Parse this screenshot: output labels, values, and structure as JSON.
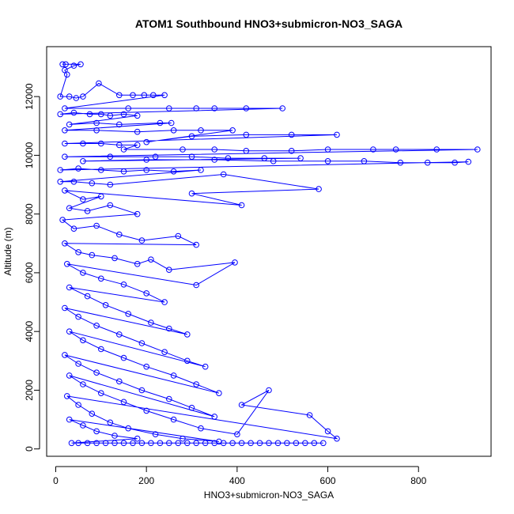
{
  "chart_data": {
    "type": "line",
    "title": "ATOM1 Southbound HNO3+submicron-NO3_SAGA",
    "xlabel": "HNO3+submicron-NO3_SAGA",
    "ylabel": "Altitude (m)",
    "xlim": [
      -20,
      960
    ],
    "ylim": [
      -250,
      13700
    ],
    "x_ticks": [
      0,
      200,
      400,
      600,
      800
    ],
    "y_ticks": [
      0,
      2000,
      4000,
      6000,
      8000,
      10000,
      12000
    ],
    "grid": false,
    "legend": "none",
    "series_color": "#0000ff",
    "marker": "open-circle",
    "series": [
      {
        "name": "",
        "points": [
          [
            15,
            13100
          ],
          [
            22,
            13100
          ],
          [
            55,
            13100
          ],
          [
            40,
            13050
          ],
          [
            20,
            12900
          ],
          [
            25,
            12750
          ],
          [
            10,
            12000
          ],
          [
            30,
            12000
          ],
          [
            45,
            11950
          ],
          [
            60,
            12000
          ],
          [
            95,
            12450
          ],
          [
            140,
            12050
          ],
          [
            170,
            12050
          ],
          [
            195,
            12050
          ],
          [
            215,
            12050
          ],
          [
            240,
            12050
          ],
          [
            20,
            11600
          ],
          [
            160,
            11600
          ],
          [
            250,
            11600
          ],
          [
            310,
            11600
          ],
          [
            350,
            11600
          ],
          [
            420,
            11600
          ],
          [
            500,
            11600
          ],
          [
            10,
            11400
          ],
          [
            40,
            11450
          ],
          [
            75,
            11400
          ],
          [
            100,
            11400
          ],
          [
            120,
            11350
          ],
          [
            150,
            11400
          ],
          [
            180,
            11350
          ],
          [
            30,
            11050
          ],
          [
            90,
            11100
          ],
          [
            140,
            11050
          ],
          [
            230,
            11100
          ],
          [
            255,
            11100
          ],
          [
            20,
            10850
          ],
          [
            90,
            10850
          ],
          [
            180,
            10800
          ],
          [
            260,
            10850
          ],
          [
            320,
            10850
          ],
          [
            390,
            10850
          ],
          [
            200,
            10450
          ],
          [
            300,
            10650
          ],
          [
            420,
            10700
          ],
          [
            520,
            10700
          ],
          [
            620,
            10700
          ],
          [
            20,
            10400
          ],
          [
            60,
            10400
          ],
          [
            100,
            10400
          ],
          [
            140,
            10350
          ],
          [
            180,
            10350
          ],
          [
            150,
            10200
          ],
          [
            280,
            10200
          ],
          [
            350,
            10200
          ],
          [
            420,
            10150
          ],
          [
            520,
            10150
          ],
          [
            600,
            10200
          ],
          [
            700,
            10200
          ],
          [
            750,
            10200
          ],
          [
            840,
            10200
          ],
          [
            930,
            10200
          ],
          [
            20,
            9950
          ],
          [
            120,
            9950
          ],
          [
            220,
            9950
          ],
          [
            300,
            9950
          ],
          [
            380,
            9900
          ],
          [
            460,
            9900
          ],
          [
            540,
            9900
          ],
          [
            60,
            9800
          ],
          [
            200,
            9850
          ],
          [
            350,
            9850
          ],
          [
            480,
            9800
          ],
          [
            600,
            9800
          ],
          [
            680,
            9800
          ],
          [
            760,
            9750
          ],
          [
            820,
            9750
          ],
          [
            880,
            9750
          ],
          [
            910,
            9780
          ],
          [
            10,
            9500
          ],
          [
            50,
            9550
          ],
          [
            100,
            9500
          ],
          [
            150,
            9450
          ],
          [
            200,
            9500
          ],
          [
            260,
            9450
          ],
          [
            320,
            9500
          ],
          [
            10,
            9100
          ],
          [
            40,
            9100
          ],
          [
            80,
            9050
          ],
          [
            120,
            9000
          ],
          [
            370,
            9350
          ],
          [
            580,
            8850
          ],
          [
            300,
            8700
          ],
          [
            410,
            8300
          ],
          [
            20,
            8800
          ],
          [
            60,
            8500
          ],
          [
            100,
            8600
          ],
          [
            30,
            8200
          ],
          [
            70,
            8100
          ],
          [
            120,
            8300
          ],
          [
            180,
            8000
          ],
          [
            15,
            7800
          ],
          [
            40,
            7500
          ],
          [
            90,
            7600
          ],
          [
            140,
            7300
          ],
          [
            190,
            7100
          ],
          [
            270,
            7250
          ],
          [
            310,
            6950
          ],
          [
            20,
            7000
          ],
          [
            50,
            6700
          ],
          [
            80,
            6600
          ],
          [
            130,
            6500
          ],
          [
            180,
            6300
          ],
          [
            210,
            6450
          ],
          [
            250,
            6100
          ],
          [
            395,
            6350
          ],
          [
            310,
            5580
          ],
          [
            25,
            6300
          ],
          [
            60,
            6000
          ],
          [
            100,
            5800
          ],
          [
            150,
            5600
          ],
          [
            200,
            5300
          ],
          [
            240,
            5000
          ],
          [
            30,
            5500
          ],
          [
            70,
            5200
          ],
          [
            110,
            4900
          ],
          [
            160,
            4600
          ],
          [
            210,
            4300
          ],
          [
            250,
            4100
          ],
          [
            290,
            3900
          ],
          [
            20,
            4800
          ],
          [
            50,
            4500
          ],
          [
            90,
            4200
          ],
          [
            140,
            3900
          ],
          [
            190,
            3600
          ],
          [
            240,
            3300
          ],
          [
            290,
            3000
          ],
          [
            330,
            2800
          ],
          [
            30,
            4000
          ],
          [
            60,
            3700
          ],
          [
            100,
            3400
          ],
          [
            150,
            3100
          ],
          [
            200,
            2800
          ],
          [
            260,
            2500
          ],
          [
            310,
            2200
          ],
          [
            360,
            1900
          ],
          [
            20,
            3200
          ],
          [
            50,
            2900
          ],
          [
            90,
            2600
          ],
          [
            140,
            2300
          ],
          [
            190,
            2000
          ],
          [
            250,
            1700
          ],
          [
            300,
            1400
          ],
          [
            350,
            1100
          ],
          [
            30,
            2500
          ],
          [
            60,
            2200
          ],
          [
            100,
            1900
          ],
          [
            150,
            1600
          ],
          [
            200,
            1300
          ],
          [
            260,
            1000
          ],
          [
            320,
            700
          ],
          [
            400,
            500
          ],
          [
            470,
            2000
          ],
          [
            410,
            1500
          ],
          [
            560,
            1150
          ],
          [
            600,
            600
          ],
          [
            620,
            350
          ],
          [
            25,
            1800
          ],
          [
            50,
            1500
          ],
          [
            80,
            1200
          ],
          [
            120,
            900
          ],
          [
            160,
            700
          ],
          [
            220,
            500
          ],
          [
            280,
            350
          ],
          [
            360,
            250
          ],
          [
            30,
            1000
          ],
          [
            60,
            800
          ],
          [
            90,
            600
          ],
          [
            130,
            450
          ],
          [
            180,
            350
          ],
          [
            35,
            200
          ],
          [
            50,
            200
          ],
          [
            70,
            200
          ],
          [
            90,
            200
          ],
          [
            110,
            200
          ],
          [
            130,
            200
          ],
          [
            150,
            200
          ],
          [
            170,
            200
          ],
          [
            190,
            200
          ],
          [
            210,
            200
          ],
          [
            230,
            200
          ],
          [
            250,
            200
          ],
          [
            270,
            200
          ],
          [
            290,
            200
          ],
          [
            310,
            200
          ],
          [
            330,
            200
          ],
          [
            350,
            200
          ],
          [
            370,
            200
          ],
          [
            390,
            200
          ],
          [
            410,
            200
          ],
          [
            430,
            200
          ],
          [
            450,
            200
          ],
          [
            470,
            200
          ],
          [
            490,
            200
          ],
          [
            510,
            200
          ],
          [
            530,
            200
          ],
          [
            550,
            200
          ],
          [
            570,
            200
          ],
          [
            590,
            200
          ]
        ]
      }
    ]
  }
}
